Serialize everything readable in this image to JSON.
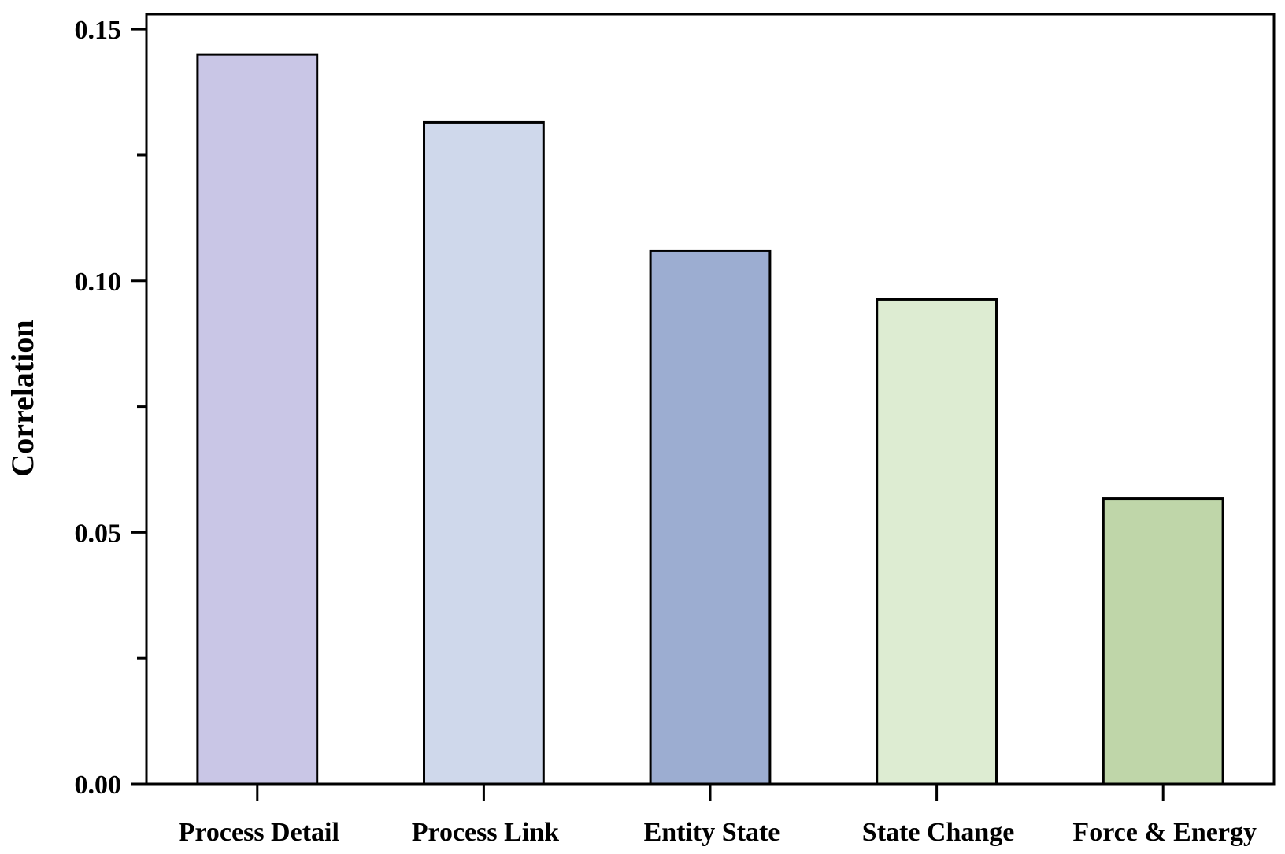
{
  "chart_data": {
    "type": "bar",
    "title": "",
    "xlabel": "",
    "ylabel": "Correlation",
    "ylim": [
      0,
      0.153
    ],
    "yticks_major": [
      0.0,
      0.05,
      0.1,
      0.15
    ],
    "ytick_labels": [
      "0.00",
      "0.05",
      "0.10",
      "0.15"
    ],
    "yticks_minor": [
      0.025,
      0.075,
      0.125
    ],
    "grid": false,
    "legend": "none",
    "categories": [
      "Process Detail",
      "Process Link",
      "Entity State",
      "State Change",
      "Force & Energy"
    ],
    "values": [
      0.145,
      0.1315,
      0.106,
      0.0963,
      0.0567
    ],
    "colors": [
      "#c9c6e6",
      "#cfd8eb",
      "#9cadd1",
      "#ddecd2",
      "#bfd6a9"
    ]
  }
}
